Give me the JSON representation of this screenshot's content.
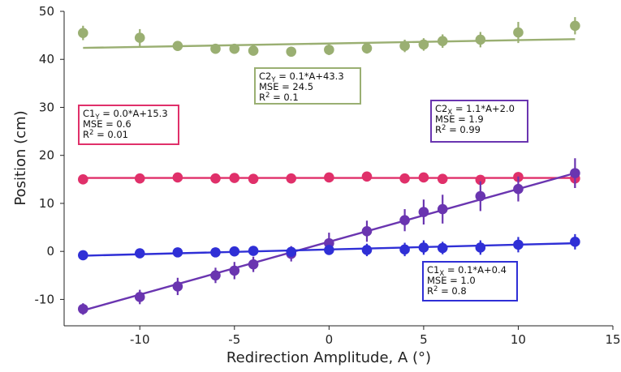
{
  "chart_data": {
    "type": "scatter",
    "xlabel": "Redirection Amplitude, A (°)",
    "ylabel": "Position (cm)",
    "xlim": [
      -14,
      15
    ],
    "ylim": [
      -15.5,
      50
    ],
    "xticks": [
      -10,
      -5,
      0,
      5,
      10,
      15
    ],
    "yticks": [
      -10,
      0,
      10,
      20,
      30,
      40,
      50
    ],
    "xtick_labels": [
      "-10",
      "-5",
      "0",
      "5",
      "10",
      "15"
    ],
    "ytick_labels": [
      "-10",
      "0",
      "10",
      "20",
      "30",
      "40",
      "50"
    ],
    "grid": false,
    "x": [
      -13,
      -10,
      -8,
      -6,
      -5,
      -4,
      -2,
      0,
      2,
      4,
      5,
      6,
      8,
      10,
      13
    ],
    "series": [
      {
        "color": "#9aaf72",
        "values": [
          45.5,
          44.5,
          42.8,
          42.2,
          42.2,
          41.8,
          41.6,
          42.0,
          42.3,
          42.8,
          43.1,
          43.8,
          44.1,
          45.6,
          47.0
        ],
        "errors": [
          1.5,
          1.8,
          0.9,
          0.9,
          0.9,
          1.0,
          1.0,
          1.1,
          1.1,
          1.3,
          1.3,
          1.4,
          1.6,
          2.2,
          1.8
        ],
        "fit": {
          "slope": 0.07,
          "intercept": 43.3
        }
      },
      {
        "color": "#e0306a",
        "values": [
          15.0,
          15.2,
          15.4,
          15.2,
          15.3,
          15.1,
          15.2,
          15.4,
          15.6,
          15.2,
          15.4,
          15.1,
          14.9,
          15.5,
          15.2
        ],
        "errors": [
          0.6,
          0.5,
          0.6,
          0.5,
          0.7,
          0.6,
          0.6,
          0.6,
          0.6,
          0.8,
          1.0,
          0.8,
          0.7,
          0.9,
          2.0
        ],
        "fit": {
          "slope": 0.0,
          "intercept": 15.3
        }
      },
      {
        "color": "#6a35b0",
        "values": [
          -12.0,
          -9.5,
          -7.3,
          -5.0,
          -4.0,
          -2.7,
          -0.5,
          1.7,
          4.2,
          6.5,
          8.2,
          8.8,
          11.5,
          13.0,
          16.3
        ],
        "errors": [
          1.2,
          1.5,
          1.8,
          1.6,
          1.8,
          1.6,
          1.6,
          2.2,
          2.2,
          2.3,
          2.6,
          3.0,
          3.1,
          2.6,
          3.1
        ],
        "fit": {
          "slope": 1.1,
          "intercept": 2.0
        }
      },
      {
        "color": "#2f2fd6",
        "values": [
          -0.8,
          -0.4,
          -0.2,
          -0.2,
          0.0,
          0.1,
          -0.1,
          0.3,
          0.3,
          0.4,
          0.8,
          0.7,
          0.8,
          1.4,
          2.0
        ],
        "errors": [
          1.0,
          0.8,
          0.8,
          0.6,
          0.6,
          0.8,
          0.9,
          1.0,
          1.3,
          1.4,
          1.5,
          1.3,
          1.5,
          1.6,
          1.6
        ],
        "fit": {
          "slope": 0.1,
          "intercept": 0.4
        }
      }
    ],
    "annotations": [
      {
        "color": "#9aaf72",
        "base": "C2",
        "sub": "Y",
        "eq": " = 0.1*A+43.3",
        "mse": "MSE = 24.5",
        "r2_base": "R",
        "r2_sup": "2",
        "r2_val": " = 0.1"
      },
      {
        "color": "#e0306a",
        "base": "C1",
        "sub": "Y",
        "eq": " = 0.0*A+15.3",
        "mse": "MSE = 0.6",
        "r2_base": "R",
        "r2_sup": "2",
        "r2_val": " = 0.01"
      },
      {
        "color": "#6a35b0",
        "base": "C2",
        "sub": "X",
        "eq": " = 1.1*A+2.0",
        "mse": "MSE = 1.9",
        "r2_base": "R",
        "r2_sup": "2",
        "r2_val": " = 0.99"
      },
      {
        "color": "#2f2fd6",
        "base": "C1",
        "sub": "X",
        "eq": " = 0.1*A+0.4",
        "mse": "MSE = 1.0",
        "r2_base": "R",
        "r2_sup": "2",
        "r2_val": " = 0.8"
      }
    ]
  }
}
